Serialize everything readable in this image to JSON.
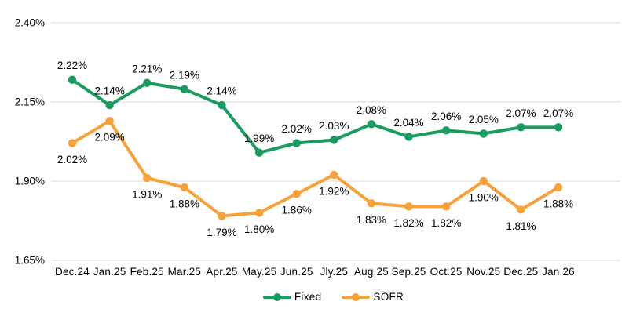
{
  "chart_data": {
    "type": "line",
    "title": "",
    "xlabel": "",
    "ylabel": "",
    "categories": [
      "Dec.24",
      "Jan.25",
      "Feb.25",
      "Mar.25",
      "Apr.25",
      "May.25",
      "Jun.25",
      "Jly.25",
      "Aug.25",
      "Sep.25",
      "Oct.25",
      "Nov.25",
      "Dec.25",
      "Jan.26"
    ],
    "series": [
      {
        "name": "Fixed",
        "color": "#1a9b5f",
        "values": [
          2.22,
          2.14,
          2.21,
          2.19,
          2.14,
          1.99,
          2.02,
          2.03,
          2.08,
          2.04,
          2.06,
          2.05,
          2.07,
          2.07
        ],
        "labels": [
          "2.22%",
          "2.14%",
          "2.21%",
          "2.19%",
          "2.14%",
          "1.99%",
          "2.02%",
          "2.03%",
          "2.08%",
          "2.04%",
          "2.06%",
          "2.05%",
          "2.07%",
          "2.07%"
        ],
        "label_position": "above"
      },
      {
        "name": "SOFR",
        "color": "#f7a239",
        "values": [
          2.02,
          2.09,
          1.91,
          1.88,
          1.79,
          1.8,
          1.86,
          1.92,
          1.83,
          1.82,
          1.82,
          1.9,
          1.81,
          1.88
        ],
        "labels": [
          "2.02%",
          "2.09%",
          "1.91%",
          "1.88%",
          "1.79%",
          "1.80%",
          "1.86%",
          "1.92%",
          "1.83%",
          "1.82%",
          "1.82%",
          "1.90%",
          "1.81%",
          "1.88%"
        ],
        "label_position": "below"
      }
    ],
    "ylim": [
      1.65,
      2.4
    ],
    "yticks": {
      "values": [
        2.4,
        2.15,
        1.9,
        1.65
      ],
      "labels": [
        "2.40%",
        "2.15%",
        "1.90%",
        "1.65%"
      ]
    },
    "grid": true,
    "legend_position": "bottom",
    "colors": {
      "gridline": "#d9d9d9",
      "text": "#000000",
      "background": "#ffffff"
    }
  }
}
